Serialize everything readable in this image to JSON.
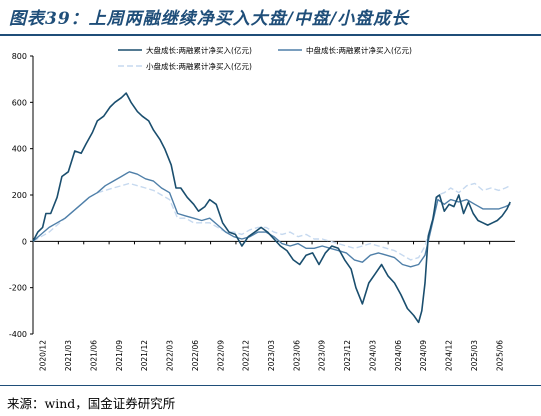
{
  "figure": {
    "title": "图表39：上周两融继续净买入大盘/中盘/小盘成长",
    "source": "来源：wind，国金证券研究所"
  },
  "colors": {
    "large": "#1a4e6e",
    "mid": "#4f7fa8",
    "small": "#c6d9ef",
    "border": "#1f4e79"
  },
  "chart_data": {
    "type": "line",
    "ylim": [
      -400,
      800
    ],
    "yticks": [
      -400,
      -200,
      0,
      200,
      400,
      600,
      800
    ],
    "xticks": [
      "2020/12",
      "2021/03",
      "2021/06",
      "2021/09",
      "2021/12",
      "2022/03",
      "2022/06",
      "2022/09",
      "2022/12",
      "2023/03",
      "2023/06",
      "2023/09",
      "2023/12",
      "2024/03",
      "2024/06",
      "2024/09",
      "2024/12",
      "2025/03",
      "2025/06"
    ],
    "grid": false,
    "legend_position": "top",
    "series": [
      {
        "name": "大盘成长:两融累计净买入(亿元)",
        "color": "large",
        "style": "solid",
        "points": [
          [
            0,
            0
          ],
          [
            0.3,
            40
          ],
          [
            0.6,
            60
          ],
          [
            0.8,
            120
          ],
          [
            1.1,
            120
          ],
          [
            1.5,
            190
          ],
          [
            1.8,
            280
          ],
          [
            2.2,
            300
          ],
          [
            2.6,
            390
          ],
          [
            3.0,
            380
          ],
          [
            3.3,
            420
          ],
          [
            3.7,
            470
          ],
          [
            4.0,
            520
          ],
          [
            4.4,
            540
          ],
          [
            4.8,
            580
          ],
          [
            5.1,
            600
          ],
          [
            5.5,
            620
          ],
          [
            5.8,
            640
          ],
          [
            6.1,
            600
          ],
          [
            6.5,
            560
          ],
          [
            6.8,
            540
          ],
          [
            7.2,
            520
          ],
          [
            7.5,
            480
          ],
          [
            7.9,
            440
          ],
          [
            8.2,
            400
          ],
          [
            8.6,
            330
          ],
          [
            8.9,
            230
          ],
          [
            9.2,
            230
          ],
          [
            9.6,
            190
          ],
          [
            10.0,
            160
          ],
          [
            10.3,
            130
          ],
          [
            10.7,
            150
          ],
          [
            11.0,
            180
          ],
          [
            11.4,
            160
          ],
          [
            11.8,
            80
          ],
          [
            12.2,
            40
          ],
          [
            12.6,
            30
          ],
          [
            13.0,
            -20
          ],
          [
            13.4,
            20
          ],
          [
            13.8,
            40
          ],
          [
            14.2,
            60
          ],
          [
            14.6,
            40
          ],
          [
            15.0,
            10
          ],
          [
            15.4,
            -20
          ],
          [
            15.8,
            -40
          ],
          [
            16.2,
            -80
          ],
          [
            16.6,
            -100
          ],
          [
            17.0,
            -60
          ],
          [
            17.4,
            -50
          ],
          [
            17.8,
            -100
          ],
          [
            18.2,
            -50
          ],
          [
            18.6,
            -20
          ],
          [
            19.0,
            -30
          ],
          [
            19.4,
            -80
          ],
          [
            19.8,
            -120
          ],
          [
            20.1,
            -200
          ],
          [
            20.5,
            -270
          ],
          [
            20.9,
            -180
          ],
          [
            21.3,
            -140
          ],
          [
            21.7,
            -100
          ],
          [
            22.1,
            -150
          ],
          [
            22.5,
            -180
          ],
          [
            22.9,
            -230
          ],
          [
            23.3,
            -290
          ],
          [
            23.7,
            -320
          ],
          [
            24.0,
            -350
          ],
          [
            24.2,
            -300
          ],
          [
            24.4,
            -180
          ],
          [
            24.6,
            20
          ],
          [
            24.9,
            100
          ],
          [
            25.1,
            190
          ],
          [
            25.3,
            200
          ],
          [
            25.6,
            130
          ],
          [
            25.9,
            160
          ],
          [
            26.2,
            150
          ],
          [
            26.5,
            200
          ],
          [
            26.8,
            120
          ],
          [
            27.1,
            170
          ],
          [
            27.4,
            120
          ],
          [
            27.7,
            90
          ],
          [
            28.0,
            80
          ],
          [
            28.3,
            70
          ],
          [
            28.6,
            80
          ],
          [
            28.9,
            90
          ],
          [
            29.2,
            110
          ],
          [
            29.5,
            140
          ],
          [
            29.7,
            170
          ]
        ]
      },
      {
        "name": "中盘成长:两融累计净买入(亿元)",
        "color": "mid",
        "style": "solid",
        "points": [
          [
            0,
            0
          ],
          [
            0.5,
            30
          ],
          [
            1.0,
            60
          ],
          [
            1.5,
            80
          ],
          [
            2.0,
            100
          ],
          [
            2.5,
            130
          ],
          [
            3.0,
            160
          ],
          [
            3.5,
            190
          ],
          [
            4.0,
            210
          ],
          [
            4.5,
            240
          ],
          [
            5.0,
            260
          ],
          [
            5.5,
            280
          ],
          [
            6.0,
            300
          ],
          [
            6.5,
            290
          ],
          [
            7.0,
            270
          ],
          [
            7.5,
            260
          ],
          [
            8.0,
            230
          ],
          [
            8.5,
            210
          ],
          [
            9.0,
            120
          ],
          [
            9.5,
            110
          ],
          [
            10.0,
            100
          ],
          [
            10.5,
            90
          ],
          [
            11.0,
            100
          ],
          [
            11.5,
            70
          ],
          [
            12.0,
            40
          ],
          [
            12.5,
            20
          ],
          [
            13.0,
            10
          ],
          [
            13.5,
            20
          ],
          [
            14.0,
            40
          ],
          [
            14.5,
            40
          ],
          [
            15.0,
            20
          ],
          [
            15.5,
            -10
          ],
          [
            16.0,
            -20
          ],
          [
            16.5,
            -10
          ],
          [
            17.0,
            -30
          ],
          [
            17.5,
            -30
          ],
          [
            18.0,
            -20
          ],
          [
            18.5,
            -30
          ],
          [
            19.0,
            -40
          ],
          [
            19.5,
            -50
          ],
          [
            20.0,
            -80
          ],
          [
            20.5,
            -90
          ],
          [
            21.0,
            -60
          ],
          [
            21.5,
            -50
          ],
          [
            22.0,
            -60
          ],
          [
            22.5,
            -70
          ],
          [
            23.0,
            -100
          ],
          [
            23.5,
            -110
          ],
          [
            24.0,
            -100
          ],
          [
            24.4,
            -60
          ],
          [
            24.8,
            60
          ],
          [
            25.2,
            180
          ],
          [
            25.6,
            160
          ],
          [
            26.0,
            180
          ],
          [
            26.5,
            170
          ],
          [
            27.0,
            180
          ],
          [
            27.5,
            160
          ],
          [
            28.0,
            140
          ],
          [
            28.5,
            140
          ],
          [
            29.0,
            140
          ],
          [
            29.4,
            150
          ],
          [
            29.7,
            160
          ]
        ]
      },
      {
        "name": "小盘成长:两融累计净买入(亿元)",
        "color": "small",
        "style": "dashed",
        "points": [
          [
            0,
            0
          ],
          [
            0.5,
            20
          ],
          [
            1.0,
            40
          ],
          [
            1.5,
            70
          ],
          [
            2.0,
            100
          ],
          [
            2.5,
            130
          ],
          [
            3.0,
            160
          ],
          [
            3.5,
            190
          ],
          [
            4.0,
            210
          ],
          [
            4.5,
            220
          ],
          [
            5.0,
            230
          ],
          [
            5.5,
            240
          ],
          [
            6.0,
            250
          ],
          [
            6.5,
            240
          ],
          [
            7.0,
            230
          ],
          [
            7.5,
            220
          ],
          [
            8.0,
            200
          ],
          [
            8.5,
            180
          ],
          [
            9.0,
            100
          ],
          [
            9.5,
            100
          ],
          [
            10.0,
            80
          ],
          [
            10.5,
            80
          ],
          [
            11.0,
            80
          ],
          [
            11.5,
            60
          ],
          [
            12.0,
            40
          ],
          [
            12.5,
            40
          ],
          [
            13.0,
            30
          ],
          [
            13.5,
            50
          ],
          [
            14.0,
            60
          ],
          [
            14.5,
            60
          ],
          [
            15.0,
            40
          ],
          [
            15.5,
            30
          ],
          [
            16.0,
            40
          ],
          [
            16.5,
            20
          ],
          [
            17.0,
            30
          ],
          [
            17.5,
            10
          ],
          [
            18.0,
            10
          ],
          [
            18.5,
            0
          ],
          [
            19.0,
            -10
          ],
          [
            19.5,
            -20
          ],
          [
            20.0,
            -30
          ],
          [
            20.5,
            -20
          ],
          [
            21.0,
            -10
          ],
          [
            21.5,
            -20
          ],
          [
            22.0,
            -30
          ],
          [
            22.5,
            -40
          ],
          [
            23.0,
            -60
          ],
          [
            23.5,
            -80
          ],
          [
            24.0,
            -70
          ],
          [
            24.4,
            -20
          ],
          [
            24.8,
            80
          ],
          [
            25.2,
            200
          ],
          [
            25.6,
            210
          ],
          [
            26.0,
            230
          ],
          [
            26.5,
            210
          ],
          [
            27.0,
            240
          ],
          [
            27.5,
            250
          ],
          [
            28.0,
            220
          ],
          [
            28.5,
            230
          ],
          [
            29.0,
            220
          ],
          [
            29.4,
            230
          ],
          [
            29.7,
            240
          ]
        ]
      }
    ]
  }
}
